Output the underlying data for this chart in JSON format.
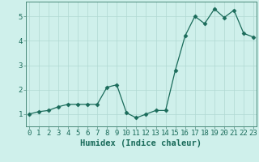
{
  "title": "",
  "xlabel": "Humidex (Indice chaleur)",
  "x": [
    0,
    1,
    2,
    3,
    4,
    5,
    6,
    7,
    8,
    9,
    10,
    11,
    12,
    13,
    14,
    15,
    16,
    17,
    18,
    19,
    20,
    21,
    22,
    23
  ],
  "y": [
    1.0,
    1.1,
    1.15,
    1.3,
    1.4,
    1.4,
    1.4,
    1.4,
    2.1,
    2.2,
    1.05,
    0.85,
    1.0,
    1.15,
    1.15,
    2.8,
    4.2,
    5.0,
    4.7,
    5.3,
    4.95,
    5.25,
    4.3,
    4.15
  ],
  "line_color": "#1a6b5a",
  "marker": "D",
  "marker_size": 2.5,
  "bg_color": "#cff0eb",
  "grid_color": "#b0d8d2",
  "ylim": [
    0.5,
    5.6
  ],
  "yticks": [
    1,
    2,
    3,
    4,
    5
  ],
  "xlim": [
    -0.3,
    23.3
  ],
  "xlabel_fontsize": 7.5,
  "tick_fontsize": 6.5,
  "spine_color": "#4a8a7a"
}
